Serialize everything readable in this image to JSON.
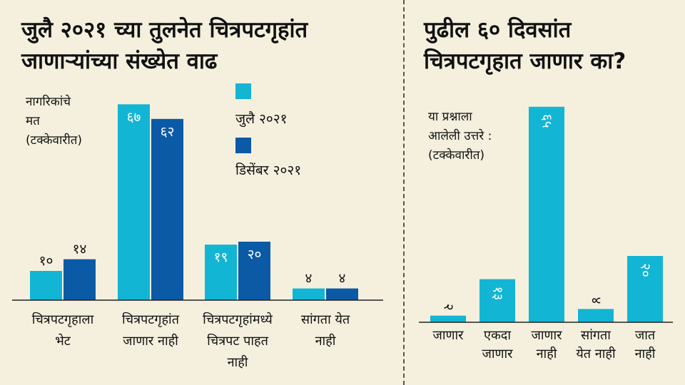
{
  "left": {
    "title_line1": "जुलै २०२१ च्या तुलनेत चित्रपटगृहांत",
    "title_line2": "जाणाऱ्यांच्या संख्येत वाढ",
    "note_line1": "नागरिकांचे",
    "note_line2": "मत",
    "note_line3": "(टक्केवारीत)"
  },
  "right": {
    "title_line1": "पुढील ६० दिवसांत",
    "title_line2": "चित्रपटगृहात जाणार का?",
    "note_line1": "या प्रश्नाला",
    "note_line2": "आलेली उत्तरे :",
    "note_line3": "(टक्केवारीत)"
  },
  "colors": {
    "light": "#13b5d4",
    "dark": "#0a5aa6",
    "background": "#f5f0de"
  },
  "chart_data": [
    {
      "type": "bar",
      "title": "जुलै २०२१ च्या तुलनेत चित्रपटगृहांत जाणाऱ्यांच्या संख्येत वाढ",
      "categories": [
        "चित्रपटगृहाला\nभेट",
        "चित्रपटगृहांत\nजाणार नाही",
        "चित्रपटगृहांमध्ये\nचित्रपट पाहत\nनाही",
        "सांगता येत\nनाही"
      ],
      "series": [
        {
          "name": "जुलै २०२१",
          "color": "#13b5d4",
          "values": [
            10,
            67,
            19,
            4
          ],
          "labels": [
            "१०",
            "६७",
            "१९",
            "४"
          ]
        },
        {
          "name": "डिसेंबर २०२१",
          "color": "#0a5aa6",
          "values": [
            14,
            62,
            20,
            4
          ],
          "labels": [
            "१४",
            "६२",
            "२०",
            "४"
          ]
        }
      ],
      "ylim": [
        0,
        70
      ],
      "legend": "top-center"
    },
    {
      "type": "bar",
      "title": "पुढील ६० दिवसांत चित्रपटगृहात जाणार का?",
      "categories": [
        "जाणार",
        "एकदा\nजाणार",
        "जाणार\nनाही",
        "सांगता\nयेत नाही",
        "जात\nनाही"
      ],
      "series": [
        {
          "color": "#13b5d4",
          "values": [
            2,
            13,
            65,
            4,
            20
          ],
          "labels": [
            "२",
            "१३",
            "६५",
            "४",
            "२०"
          ]
        }
      ],
      "ylim": [
        0,
        70
      ],
      "label_rotation": "90"
    }
  ]
}
